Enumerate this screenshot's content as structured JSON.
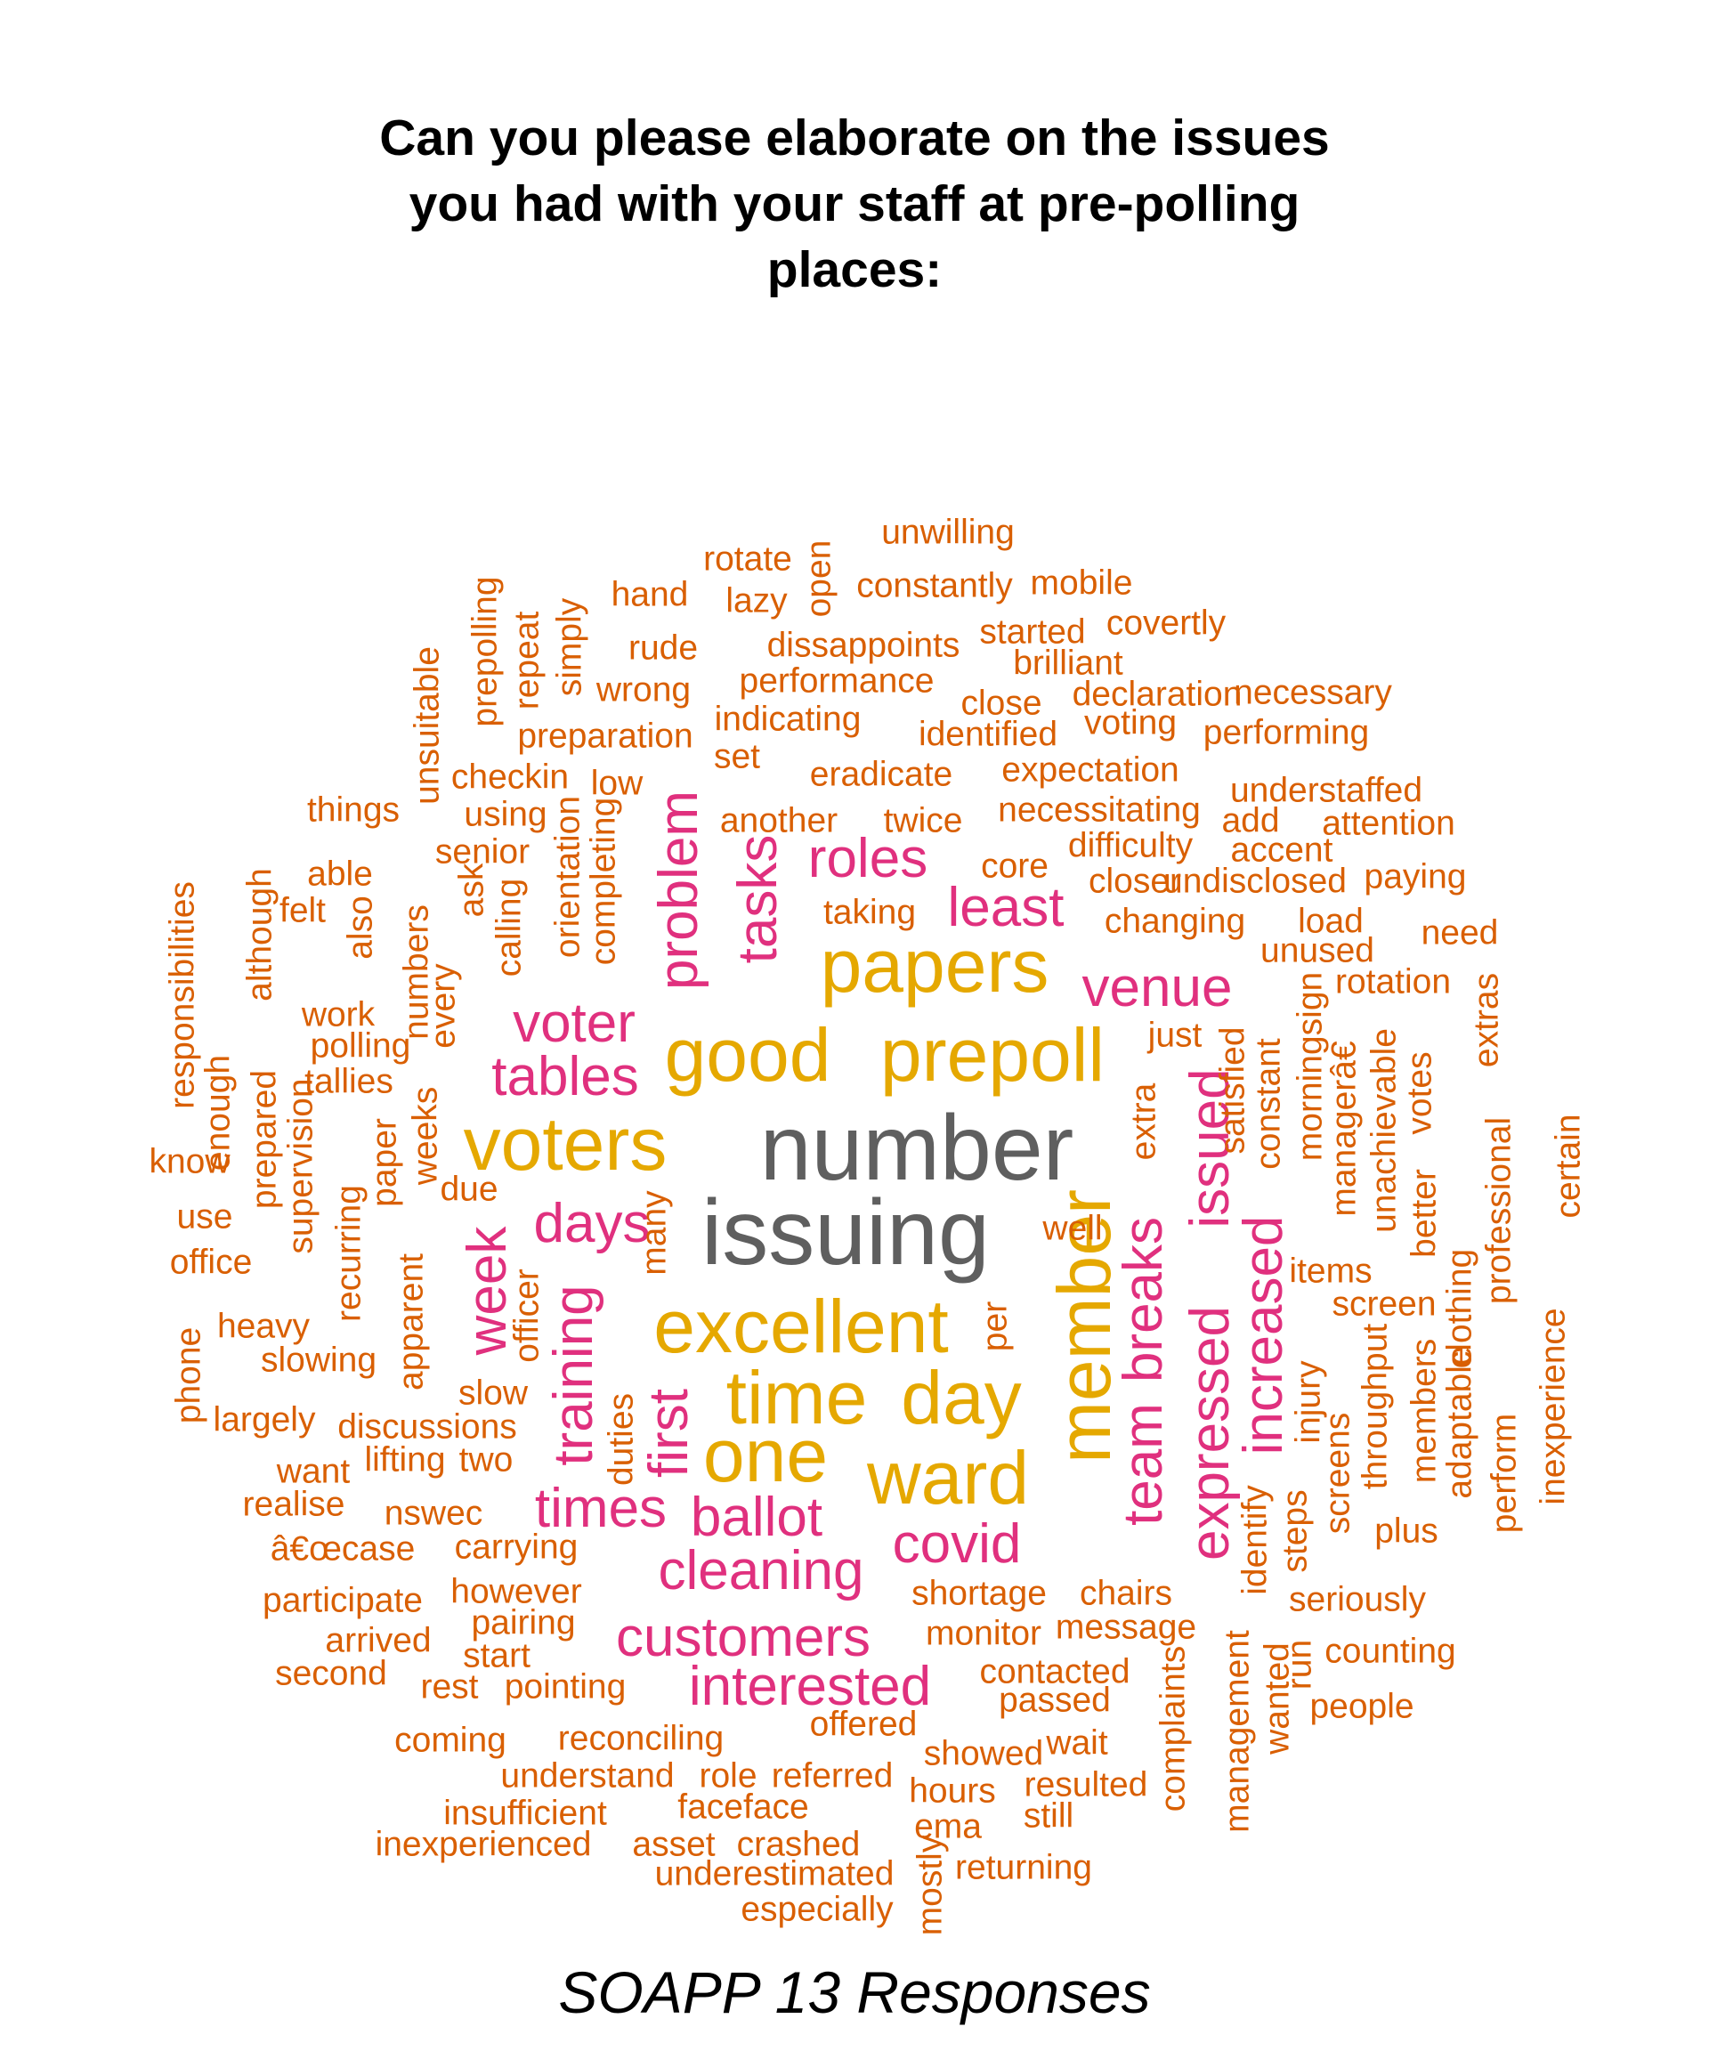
{
  "title_lines": [
    "Can you please elaborate on the issues",
    "you had with your staff at pre-polling",
    "places:"
  ],
  "footer": "SOAPP 13 Responses",
  "colors": {
    "gray": "#5f5f5f",
    "gold": "#e5a800",
    "pink": "#e0307e",
    "orange": "#d95f02"
  },
  "words": [
    {
      "text": "number",
      "color": "gray",
      "size": 104,
      "rot": 0
    },
    {
      "text": "issuing",
      "color": "gray",
      "size": 104,
      "rot": 0
    },
    {
      "text": "papers",
      "color": "gold",
      "size": 84,
      "rot": 0
    },
    {
      "text": "good",
      "color": "gold",
      "size": 84,
      "rot": 0
    },
    {
      "text": "prepoll",
      "color": "gold",
      "size": 84,
      "rot": 0
    },
    {
      "text": "voters",
      "color": "gold",
      "size": 84,
      "rot": 0
    },
    {
      "text": "excellent",
      "color": "gold",
      "size": 84,
      "rot": 0
    },
    {
      "text": "time",
      "color": "gold",
      "size": 84,
      "rot": 0
    },
    {
      "text": "day",
      "color": "gold",
      "size": 84,
      "rot": 0
    },
    {
      "text": "one",
      "color": "gold",
      "size": 84,
      "rot": 0
    },
    {
      "text": "ward",
      "color": "gold",
      "size": 84,
      "rot": 0
    },
    {
      "text": "member",
      "color": "gold",
      "size": 84,
      "rot": 1
    },
    {
      "text": "roles",
      "color": "pink",
      "size": 62,
      "rot": 0
    },
    {
      "text": "least",
      "color": "pink",
      "size": 62,
      "rot": 0
    },
    {
      "text": "venue",
      "color": "pink",
      "size": 62,
      "rot": 0
    },
    {
      "text": "voter",
      "color": "pink",
      "size": 62,
      "rot": 0
    },
    {
      "text": "tables",
      "color": "pink",
      "size": 62,
      "rot": 0
    },
    {
      "text": "days",
      "color": "pink",
      "size": 62,
      "rot": 0
    },
    {
      "text": "times",
      "color": "pink",
      "size": 62,
      "rot": 0
    },
    {
      "text": "ballot",
      "color": "pink",
      "size": 62,
      "rot": 0
    },
    {
      "text": "cleaning",
      "color": "pink",
      "size": 62,
      "rot": 0
    },
    {
      "text": "covid",
      "color": "pink",
      "size": 62,
      "rot": 0
    },
    {
      "text": "customers",
      "color": "pink",
      "size": 62,
      "rot": 0
    },
    {
      "text": "interested",
      "color": "pink",
      "size": 62,
      "rot": 0
    },
    {
      "text": "problem",
      "color": "pink",
      "size": 62,
      "rot": 1
    },
    {
      "text": "tasks",
      "color": "pink",
      "size": 62,
      "rot": 1
    },
    {
      "text": "week",
      "color": "pink",
      "size": 62,
      "rot": 1
    },
    {
      "text": "training",
      "color": "pink",
      "size": 62,
      "rot": 1
    },
    {
      "text": "first",
      "color": "pink",
      "size": 62,
      "rot": 1
    },
    {
      "text": "team",
      "color": "pink",
      "size": 62,
      "rot": 1
    },
    {
      "text": "breaks",
      "color": "pink",
      "size": 62,
      "rot": 1
    },
    {
      "text": "expressed",
      "color": "pink",
      "size": 62,
      "rot": 1
    },
    {
      "text": "issued",
      "color": "pink",
      "size": 62,
      "rot": 1
    },
    {
      "text": "increased",
      "color": "pink",
      "size": 62,
      "rot": 1
    },
    {
      "text": "unwilling",
      "color": "orange",
      "size": 39,
      "rot": 0
    },
    {
      "text": "rotate",
      "color": "orange",
      "size": 39,
      "rot": 0
    },
    {
      "text": "hand",
      "color": "orange",
      "size": 39,
      "rot": 0
    },
    {
      "text": "lazy",
      "color": "orange",
      "size": 39,
      "rot": 0
    },
    {
      "text": "constantly",
      "color": "orange",
      "size": 39,
      "rot": 0
    },
    {
      "text": "mobile",
      "color": "orange",
      "size": 39,
      "rot": 0
    },
    {
      "text": "rude",
      "color": "orange",
      "size": 39,
      "rot": 0
    },
    {
      "text": "dissappoints",
      "color": "orange",
      "size": 39,
      "rot": 0
    },
    {
      "text": "started",
      "color": "orange",
      "size": 39,
      "rot": 0
    },
    {
      "text": "covertly",
      "color": "orange",
      "size": 39,
      "rot": 0
    },
    {
      "text": "brilliant",
      "color": "orange",
      "size": 39,
      "rot": 0
    },
    {
      "text": "wrong",
      "color": "orange",
      "size": 39,
      "rot": 0
    },
    {
      "text": "performance",
      "color": "orange",
      "size": 39,
      "rot": 0
    },
    {
      "text": "close",
      "color": "orange",
      "size": 39,
      "rot": 0
    },
    {
      "text": "declaration",
      "color": "orange",
      "size": 39,
      "rot": 0
    },
    {
      "text": "necessary",
      "color": "orange",
      "size": 39,
      "rot": 0
    },
    {
      "text": "preparation",
      "color": "orange",
      "size": 39,
      "rot": 0
    },
    {
      "text": "indicating",
      "color": "orange",
      "size": 39,
      "rot": 0
    },
    {
      "text": "identified",
      "color": "orange",
      "size": 39,
      "rot": 0
    },
    {
      "text": "voting",
      "color": "orange",
      "size": 39,
      "rot": 0
    },
    {
      "text": "performing",
      "color": "orange",
      "size": 39,
      "rot": 0
    },
    {
      "text": "set",
      "color": "orange",
      "size": 39,
      "rot": 0
    },
    {
      "text": "checkin",
      "color": "orange",
      "size": 39,
      "rot": 0
    },
    {
      "text": "low",
      "color": "orange",
      "size": 39,
      "rot": 0
    },
    {
      "text": "eradicate",
      "color": "orange",
      "size": 39,
      "rot": 0
    },
    {
      "text": "expectation",
      "color": "orange",
      "size": 39,
      "rot": 0
    },
    {
      "text": "understaffed",
      "color": "orange",
      "size": 39,
      "rot": 0
    },
    {
      "text": "things",
      "color": "orange",
      "size": 39,
      "rot": 0
    },
    {
      "text": "using",
      "color": "orange",
      "size": 39,
      "rot": 0
    },
    {
      "text": "another",
      "color": "orange",
      "size": 39,
      "rot": 0
    },
    {
      "text": "twice",
      "color": "orange",
      "size": 39,
      "rot": 0
    },
    {
      "text": "necessitating",
      "color": "orange",
      "size": 39,
      "rot": 0
    },
    {
      "text": "add",
      "color": "orange",
      "size": 39,
      "rot": 0
    },
    {
      "text": "attention",
      "color": "orange",
      "size": 39,
      "rot": 0
    },
    {
      "text": "senior",
      "color": "orange",
      "size": 39,
      "rot": 0
    },
    {
      "text": "difficulty",
      "color": "orange",
      "size": 39,
      "rot": 0
    },
    {
      "text": "accent",
      "color": "orange",
      "size": 39,
      "rot": 0
    },
    {
      "text": "core",
      "color": "orange",
      "size": 39,
      "rot": 0
    },
    {
      "text": "closer",
      "color": "orange",
      "size": 39,
      "rot": 0
    },
    {
      "text": "undisclosed",
      "color": "orange",
      "size": 39,
      "rot": 0
    },
    {
      "text": "paying",
      "color": "orange",
      "size": 39,
      "rot": 0
    },
    {
      "text": "able",
      "color": "orange",
      "size": 39,
      "rot": 0
    },
    {
      "text": "felt",
      "color": "orange",
      "size": 39,
      "rot": 0
    },
    {
      "text": "taking",
      "color": "orange",
      "size": 39,
      "rot": 0
    },
    {
      "text": "changing",
      "color": "orange",
      "size": 39,
      "rot": 0
    },
    {
      "text": "load",
      "color": "orange",
      "size": 39,
      "rot": 0
    },
    {
      "text": "need",
      "color": "orange",
      "size": 39,
      "rot": 0
    },
    {
      "text": "unused",
      "color": "orange",
      "size": 39,
      "rot": 0
    },
    {
      "text": "rotation",
      "color": "orange",
      "size": 39,
      "rot": 0
    },
    {
      "text": "work",
      "color": "orange",
      "size": 39,
      "rot": 0
    },
    {
      "text": "just",
      "color": "orange",
      "size": 39,
      "rot": 0
    },
    {
      "text": "polling",
      "color": "orange",
      "size": 39,
      "rot": 0
    },
    {
      "text": "tallies",
      "color": "orange",
      "size": 39,
      "rot": 0
    },
    {
      "text": "know",
      "color": "orange",
      "size": 39,
      "rot": 0
    },
    {
      "text": "due",
      "color": "orange",
      "size": 39,
      "rot": 0
    },
    {
      "text": "use",
      "color": "orange",
      "size": 39,
      "rot": 0
    },
    {
      "text": "well",
      "color": "orange",
      "size": 39,
      "rot": 0
    },
    {
      "text": "office",
      "color": "orange",
      "size": 39,
      "rot": 0
    },
    {
      "text": "items",
      "color": "orange",
      "size": 39,
      "rot": 0
    },
    {
      "text": "screen",
      "color": "orange",
      "size": 39,
      "rot": 0
    },
    {
      "text": "heavy",
      "color": "orange",
      "size": 39,
      "rot": 0
    },
    {
      "text": "slowing",
      "color": "orange",
      "size": 39,
      "rot": 0
    },
    {
      "text": "slow",
      "color": "orange",
      "size": 39,
      "rot": 0
    },
    {
      "text": "largely",
      "color": "orange",
      "size": 39,
      "rot": 0
    },
    {
      "text": "discussions",
      "color": "orange",
      "size": 39,
      "rot": 0
    },
    {
      "text": "want",
      "color": "orange",
      "size": 39,
      "rot": 0
    },
    {
      "text": "lifting",
      "color": "orange",
      "size": 39,
      "rot": 0
    },
    {
      "text": "two",
      "color": "orange",
      "size": 39,
      "rot": 0
    },
    {
      "text": "realise",
      "color": "orange",
      "size": 39,
      "rot": 0
    },
    {
      "text": "nswec",
      "color": "orange",
      "size": 39,
      "rot": 0
    },
    {
      "text": "plus",
      "color": "orange",
      "size": 39,
      "rot": 0
    },
    {
      "text": "â€œcase",
      "color": "orange",
      "size": 39,
      "rot": 0
    },
    {
      "text": "carrying",
      "color": "orange",
      "size": 39,
      "rot": 0
    },
    {
      "text": "participate",
      "color": "orange",
      "size": 39,
      "rot": 0
    },
    {
      "text": "however",
      "color": "orange",
      "size": 39,
      "rot": 0
    },
    {
      "text": "shortage",
      "color": "orange",
      "size": 39,
      "rot": 0
    },
    {
      "text": "chairs",
      "color": "orange",
      "size": 39,
      "rot": 0
    },
    {
      "text": "seriously",
      "color": "orange",
      "size": 39,
      "rot": 0
    },
    {
      "text": "pairing",
      "color": "orange",
      "size": 39,
      "rot": 0
    },
    {
      "text": "arrived",
      "color": "orange",
      "size": 39,
      "rot": 0
    },
    {
      "text": "monitor",
      "color": "orange",
      "size": 39,
      "rot": 0
    },
    {
      "text": "message",
      "color": "orange",
      "size": 39,
      "rot": 0
    },
    {
      "text": "start",
      "color": "orange",
      "size": 39,
      "rot": 0
    },
    {
      "text": "counting",
      "color": "orange",
      "size": 39,
      "rot": 0
    },
    {
      "text": "second",
      "color": "orange",
      "size": 39,
      "rot": 0
    },
    {
      "text": "contacted",
      "color": "orange",
      "size": 39,
      "rot": 0
    },
    {
      "text": "rest",
      "color": "orange",
      "size": 39,
      "rot": 0
    },
    {
      "text": "pointing",
      "color": "orange",
      "size": 39,
      "rot": 0
    },
    {
      "text": "passed",
      "color": "orange",
      "size": 39,
      "rot": 0
    },
    {
      "text": "people",
      "color": "orange",
      "size": 39,
      "rot": 0
    },
    {
      "text": "offered",
      "color": "orange",
      "size": 39,
      "rot": 0
    },
    {
      "text": "coming",
      "color": "orange",
      "size": 39,
      "rot": 0
    },
    {
      "text": "reconciling",
      "color": "orange",
      "size": 39,
      "rot": 0
    },
    {
      "text": "wait",
      "color": "orange",
      "size": 39,
      "rot": 0
    },
    {
      "text": "showed",
      "color": "orange",
      "size": 39,
      "rot": 0
    },
    {
      "text": "understand",
      "color": "orange",
      "size": 39,
      "rot": 0
    },
    {
      "text": "role",
      "color": "orange",
      "size": 39,
      "rot": 0
    },
    {
      "text": "referred",
      "color": "orange",
      "size": 39,
      "rot": 0
    },
    {
      "text": "resulted",
      "color": "orange",
      "size": 39,
      "rot": 0
    },
    {
      "text": "hours",
      "color": "orange",
      "size": 39,
      "rot": 0
    },
    {
      "text": "faceface",
      "color": "orange",
      "size": 39,
      "rot": 0
    },
    {
      "text": "insufficient",
      "color": "orange",
      "size": 39,
      "rot": 0
    },
    {
      "text": "still",
      "color": "orange",
      "size": 39,
      "rot": 0
    },
    {
      "text": "ema",
      "color": "orange",
      "size": 39,
      "rot": 0
    },
    {
      "text": "inexperienced",
      "color": "orange",
      "size": 39,
      "rot": 0
    },
    {
      "text": "asset",
      "color": "orange",
      "size": 39,
      "rot": 0
    },
    {
      "text": "crashed",
      "color": "orange",
      "size": 39,
      "rot": 0
    },
    {
      "text": "returning",
      "color": "orange",
      "size": 39,
      "rot": 0
    },
    {
      "text": "underestimated",
      "color": "orange",
      "size": 39,
      "rot": 0
    },
    {
      "text": "especially",
      "color": "orange",
      "size": 39,
      "rot": 0
    },
    {
      "text": "open",
      "color": "orange",
      "size": 39,
      "rot": 1
    },
    {
      "text": "prepolling",
      "color": "orange",
      "size": 39,
      "rot": 1
    },
    {
      "text": "repeat",
      "color": "orange",
      "size": 39,
      "rot": 1
    },
    {
      "text": "simply",
      "color": "orange",
      "size": 39,
      "rot": 1
    },
    {
      "text": "unsuitable",
      "color": "orange",
      "size": 39,
      "rot": 1
    },
    {
      "text": "orientation",
      "color": "orange",
      "size": 39,
      "rot": 1
    },
    {
      "text": "completing",
      "color": "orange",
      "size": 39,
      "rot": 1
    },
    {
      "text": "responsibilities",
      "color": "orange",
      "size": 39,
      "rot": 1
    },
    {
      "text": "although",
      "color": "orange",
      "size": 39,
      "rot": 1
    },
    {
      "text": "also",
      "color": "orange",
      "size": 39,
      "rot": 1
    },
    {
      "text": "numbers",
      "color": "orange",
      "size": 39,
      "rot": 1
    },
    {
      "text": "ask",
      "color": "orange",
      "size": 39,
      "rot": 1
    },
    {
      "text": "calling",
      "color": "orange",
      "size": 39,
      "rot": 1
    },
    {
      "text": "every",
      "color": "orange",
      "size": 39,
      "rot": 1
    },
    {
      "text": "enough",
      "color": "orange",
      "size": 39,
      "rot": 1
    },
    {
      "text": "prepared",
      "color": "orange",
      "size": 39,
      "rot": 1
    },
    {
      "text": "supervision",
      "color": "orange",
      "size": 39,
      "rot": 1
    },
    {
      "text": "paper",
      "color": "orange",
      "size": 39,
      "rot": 1
    },
    {
      "text": "weeks",
      "color": "orange",
      "size": 39,
      "rot": 1
    },
    {
      "text": "recurring",
      "color": "orange",
      "size": 39,
      "rot": 1
    },
    {
      "text": "apparent",
      "color": "orange",
      "size": 39,
      "rot": 1
    },
    {
      "text": "officer",
      "color": "orange",
      "size": 39,
      "rot": 1
    },
    {
      "text": "many",
      "color": "orange",
      "size": 39,
      "rot": 1
    },
    {
      "text": "duties",
      "color": "orange",
      "size": 39,
      "rot": 1
    },
    {
      "text": "per",
      "color": "orange",
      "size": 39,
      "rot": 1
    },
    {
      "text": "phone",
      "color": "orange",
      "size": 39,
      "rot": 1
    },
    {
      "text": "extra",
      "color": "orange",
      "size": 39,
      "rot": 1
    },
    {
      "text": "satisfied",
      "color": "orange",
      "size": 39,
      "rot": 1
    },
    {
      "text": "constant",
      "color": "orange",
      "size": 39,
      "rot": 1
    },
    {
      "text": "morningsign",
      "color": "orange",
      "size": 39,
      "rot": 1
    },
    {
      "text": "managerâ€",
      "color": "orange",
      "size": 39,
      "rot": 1
    },
    {
      "text": "unachievable",
      "color": "orange",
      "size": 39,
      "rot": 1
    },
    {
      "text": "votes",
      "color": "orange",
      "size": 39,
      "rot": 1
    },
    {
      "text": "extras",
      "color": "orange",
      "size": 39,
      "rot": 1
    },
    {
      "text": "better",
      "color": "orange",
      "size": 39,
      "rot": 1
    },
    {
      "text": "professional",
      "color": "orange",
      "size": 39,
      "rot": 1
    },
    {
      "text": "certain",
      "color": "orange",
      "size": 39,
      "rot": 1
    },
    {
      "text": "clothing",
      "color": "orange",
      "size": 39,
      "rot": 1
    },
    {
      "text": "injury",
      "color": "orange",
      "size": 39,
      "rot": 1
    },
    {
      "text": "throughput",
      "color": "orange",
      "size": 39,
      "rot": 1
    },
    {
      "text": "members",
      "color": "orange",
      "size": 39,
      "rot": 1
    },
    {
      "text": "adaptable",
      "color": "orange",
      "size": 39,
      "rot": 1
    },
    {
      "text": "perform",
      "color": "orange",
      "size": 39,
      "rot": 1
    },
    {
      "text": "inexperience",
      "color": "orange",
      "size": 39,
      "rot": 1
    },
    {
      "text": "screens",
      "color": "orange",
      "size": 39,
      "rot": 1
    },
    {
      "text": "steps",
      "color": "orange",
      "size": 39,
      "rot": 1
    },
    {
      "text": "identify",
      "color": "orange",
      "size": 39,
      "rot": 1
    },
    {
      "text": "run",
      "color": "orange",
      "size": 39,
      "rot": 1
    },
    {
      "text": "wanted",
      "color": "orange",
      "size": 39,
      "rot": 1
    },
    {
      "text": "management",
      "color": "orange",
      "size": 39,
      "rot": 1
    },
    {
      "text": "complaints",
      "color": "orange",
      "size": 39,
      "rot": 1
    },
    {
      "text": "mostly",
      "color": "orange",
      "size": 39,
      "rot": 1
    }
  ]
}
